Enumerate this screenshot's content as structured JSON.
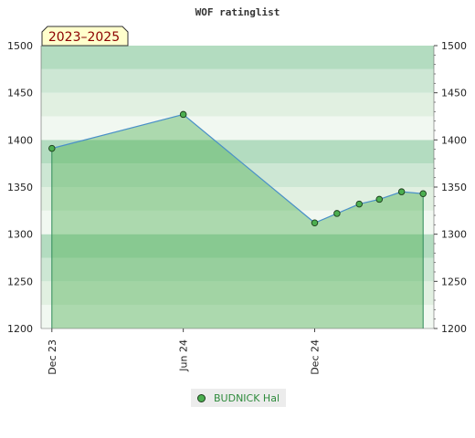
{
  "chart_data": {
    "type": "area",
    "title": "WOF ratinglist",
    "badge": "2023–2025",
    "ylim": [
      1200,
      1500
    ],
    "y_ticks": [
      1200,
      1250,
      1300,
      1350,
      1400,
      1450,
      1500
    ],
    "x_ticks": [
      {
        "label": "Dec 23",
        "date": "2023-12-01"
      },
      {
        "label": "Jun 24",
        "date": "2024-06-01"
      },
      {
        "label": "Dec 24",
        "date": "2024-12-01"
      }
    ],
    "xlim": [
      "2023-11-16",
      "2025-05-16"
    ],
    "series": [
      {
        "name": "BUDNICK Hal",
        "color": "#4a90c8",
        "x": [
          "2023-12-01",
          "2024-06-01",
          "2024-12-01",
          "2025-01-01",
          "2025-02-01",
          "2025-03-01",
          "2025-04-01",
          "2025-05-01"
        ],
        "y": [
          1391,
          1427,
          1312,
          1322,
          1332,
          1337,
          1345,
          1343
        ]
      }
    ],
    "grid": true,
    "legend": "bottom-center"
  }
}
